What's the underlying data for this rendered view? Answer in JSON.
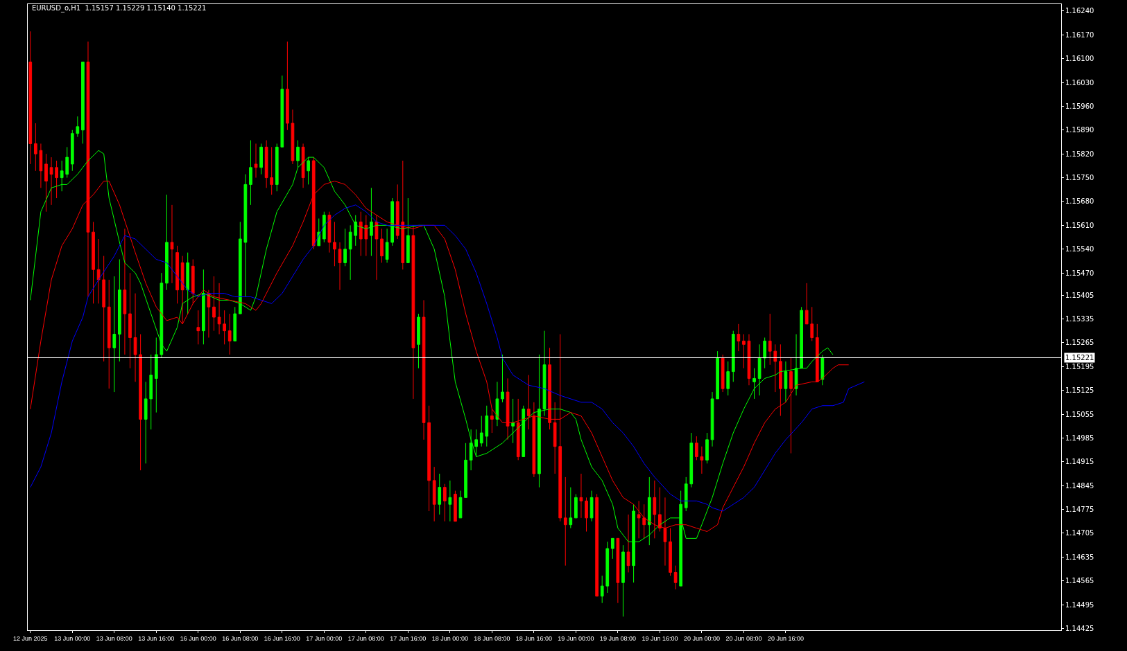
{
  "chart_data": {
    "type": "candlestick",
    "title": "EURUSD_o,H1  1.15157 1.15229 1.15140 1.15221",
    "categories": [
      "12 Jun 2025",
      null,
      null,
      null,
      null,
      null,
      null,
      null,
      "13 Jun 00:00",
      null,
      null,
      null,
      null,
      null,
      null,
      null,
      "13 Jun 08:00",
      null,
      null,
      null,
      null,
      null,
      null,
      null,
      "13 Jun 16:00",
      null,
      null,
      null,
      null,
      null,
      null,
      null,
      "16 Jun 00:00",
      null,
      null,
      null,
      null,
      null,
      null,
      null,
      "16 Jun 08:00",
      null,
      null,
      null,
      null,
      null,
      null,
      null,
      "16 Jun 16:00",
      null,
      null,
      null,
      null,
      null,
      null,
      null,
      "17 Jun 00:00",
      null,
      null,
      null,
      null,
      null,
      null,
      null,
      "17 Jun 08:00",
      null,
      null,
      null,
      null,
      null,
      null,
      null,
      "17 Jun 16:00",
      null,
      null,
      null,
      null,
      null,
      null,
      null,
      "18 Jun 00:00",
      null,
      null,
      null,
      null,
      null,
      null,
      null,
      "18 Jun 08:00",
      null,
      null,
      null,
      null,
      null,
      null,
      null,
      "18 Jun 16:00",
      null,
      null,
      null,
      null,
      null,
      null,
      null,
      "19 Jun 00:00",
      null,
      null,
      null,
      null,
      null,
      null,
      null,
      "19 Jun 08:00",
      null,
      null,
      null,
      null,
      null,
      null,
      null,
      "19 Jun 16:00",
      null,
      null,
      null,
      null,
      null,
      null,
      null,
      "20 Jun 00:00",
      null,
      null,
      null,
      null,
      null,
      null,
      null,
      "20 Jun 08:00",
      null,
      null,
      null,
      null,
      null,
      null,
      null,
      "20 Jun 16:00",
      null,
      null,
      null,
      null,
      null,
      null,
      null,
      null,
      null,
      null,
      null,
      null,
      null,
      null,
      null,
      null,
      null,
      null,
      null,
      null,
      null,
      null,
      null,
      null,
      null,
      null,
      null,
      null,
      null,
      null,
      null,
      null,
      null,
      null,
      null,
      null,
      null,
      null,
      null,
      null,
      null,
      null,
      null,
      null,
      null,
      null,
      null,
      null,
      null,
      null,
      null,
      null
    ],
    "colors": [
      "#ff0000",
      "#ff0000",
      "#ff0000",
      "#ff0000",
      "#ff0000",
      "#ff0000",
      "#00ff00",
      "#00ff00",
      "#00ff00",
      "#00ff00",
      "#00ff00",
      "#ff0000",
      "#ff0000",
      "#ff0000",
      "#ff0000",
      "#ff0000",
      "#00ff00",
      "#00ff00",
      "#ff0000",
      "#ff0000",
      "#ff0000",
      "#ff0000",
      "#00ff00",
      "#00ff00",
      "#00ff00",
      "#00ff00",
      "#00ff00",
      "#ff0000",
      "#ff0000",
      "#ff0000",
      "#00ff00",
      "#ff0000",
      "#ff0000",
      "#00ff00",
      "#ff0000",
      "#ff0000",
      "#ff0000",
      "#ff0000",
      "#ff0000",
      "#00ff00",
      "#00ff00",
      "#00ff00",
      "#00ff00",
      "#ff0000",
      "#00ff00",
      "#ff0000",
      "#ff0000",
      "#00ff00",
      "#00ff00",
      "#ff0000",
      "#ff0000",
      "#00ff00",
      "#ff0000",
      "#00ff00",
      "#ff0000",
      "#00ff00",
      "#00ff00",
      "#ff0000",
      "#ff0000",
      "#ff0000",
      "#00ff00",
      "#00ff00",
      "#00ff00",
      "#ff0000",
      "#ff0000",
      "#00ff00",
      "#ff0000",
      "#ff0000",
      "#00ff00",
      "#00ff00",
      "#ff0000",
      "#ff0000",
      "#00ff00",
      "#ff0000",
      "#00ff00",
      "#ff0000",
      "#ff0000",
      "#ff0000",
      "#00ff00",
      "#ff0000",
      "#00ff00",
      "#ff0000",
      "#00ff00",
      "#00ff00",
      "#00ff00",
      "#00ff00",
      "#00ff00",
      "#00ff00",
      "#ff0000",
      "#00ff00",
      "#00ff00",
      "#ff0000",
      "#00ff00",
      "#ff0000",
      "#00ff00",
      "#ff0000",
      "#ff0000",
      "#00ff00",
      "#00ff00",
      "#ff0000",
      "#ff0000",
      "#ff0000",
      "#ff0000",
      "#00ff00",
      "#00ff00",
      "#ff0000",
      "#ff0000",
      "#00ff00",
      "#ff0000",
      "#00ff00",
      "#00ff00",
      "#00ff00",
      "#ff0000",
      "#00ff00",
      "#ff0000",
      "#00ff00",
      "#ff0000",
      "#ff0000",
      "#00ff00",
      "#ff0000",
      "#ff0000",
      "#ff0000",
      "#ff0000",
      "#ff0000",
      "#00ff00",
      "#00ff00",
      "#00ff00",
      "#ff0000",
      "#ff0000",
      "#00ff00",
      "#00ff00",
      "#00ff00",
      "#ff0000",
      "#00ff00",
      "#00ff00",
      "#ff0000",
      "#ff0000",
      "#ff0000",
      "#00ff00",
      "#00ff00",
      "#00ff00",
      "#ff0000",
      "#ff0000",
      "#ff0000",
      "#00ff00",
      "#ff0000",
      "#00ff00",
      "#00ff00",
      "#ff0000",
      "#ff0000",
      "#ff0000",
      "#00ff00",
      null,
      null,
      null,
      null,
      null,
      null,
      null,
      null,
      null,
      null,
      null,
      null,
      null,
      null,
      null,
      null,
      null,
      null,
      null,
      null,
      null,
      null,
      null,
      null,
      null,
      null,
      null,
      null,
      null,
      null,
      null,
      null,
      null,
      null,
      null,
      null,
      null,
      null,
      null,
      null,
      null,
      null,
      null,
      null,
      null
    ],
    "ohlc": [
      [
        1.1609,
        1.1618,
        1.1579,
        1.1585
      ],
      [
        1.1585,
        1.1591,
        1.1577,
        1.1582
      ],
      [
        1.1583,
        1.1585,
        1.1572,
        1.1577
      ],
      [
        1.1579,
        1.1582,
        1.1565,
        1.1574
      ],
      [
        1.1578,
        1.1581,
        1.1567,
        1.1576
      ],
      [
        1.1578,
        1.158,
        1.1569,
        1.1575
      ],
      [
        1.1575,
        1.158,
        1.1571,
        1.1577
      ],
      [
        1.1576,
        1.1584,
        1.1575,
        1.1581
      ],
      [
        1.1579,
        1.1589,
        1.1577,
        1.1588
      ],
      [
        1.1588,
        1.1593,
        1.1587,
        1.159
      ],
      [
        1.1589,
        1.1609,
        1.1585,
        1.1609
      ],
      [
        1.1609,
        1.1615,
        1.154,
        1.1559
      ],
      [
        1.1559,
        1.1562,
        1.1538,
        1.1548
      ],
      [
        1.1548,
        1.1557,
        1.1538,
        1.1545
      ],
      [
        1.1545,
        1.1552,
        1.1521,
        1.1537
      ],
      [
        1.1537,
        1.1545,
        1.1513,
        1.1525
      ],
      [
        1.1525,
        1.1546,
        1.1512,
        1.1529
      ],
      [
        1.1529,
        1.1551,
        1.1521,
        1.1542
      ],
      [
        1.1542,
        1.156,
        1.1523,
        1.1535
      ],
      [
        1.1535,
        1.1547,
        1.1519,
        1.1528
      ],
      [
        1.1528,
        1.1541,
        1.1515,
        1.1523
      ],
      [
        1.1523,
        1.1529,
        1.1489,
        1.1504
      ],
      [
        1.1504,
        1.1515,
        1.1491,
        1.151
      ],
      [
        1.151,
        1.1523,
        1.1501,
        1.1517
      ],
      [
        1.1516,
        1.1528,
        1.1506,
        1.1523
      ],
      [
        1.1523,
        1.1547,
        1.1522,
        1.1544
      ],
      [
        1.1544,
        1.157,
        1.1542,
        1.1556
      ],
      [
        1.1556,
        1.1567,
        1.1544,
        1.1554
      ],
      [
        1.1553,
        1.1555,
        1.1538,
        1.1542
      ],
      [
        1.155,
        1.1552,
        1.1532,
        1.1542
      ],
      [
        1.1542,
        1.1553,
        1.1535,
        1.155
      ],
      [
        1.1549,
        1.1551,
        1.1538,
        1.1541
      ],
      [
        1.1531,
        1.1536,
        1.1526,
        1.153
      ],
      [
        1.153,
        1.1548,
        1.1526,
        1.1541
      ],
      [
        1.1541,
        1.1542,
        1.1528,
        1.1537
      ],
      [
        1.1537,
        1.1546,
        1.153,
        1.1534
      ],
      [
        1.1534,
        1.1544,
        1.1529,
        1.1532
      ],
      [
        1.1532,
        1.1536,
        1.1526,
        1.153
      ],
      [
        1.153,
        1.1535,
        1.1523,
        1.1527
      ],
      [
        1.1527,
        1.1537,
        1.1527,
        1.1535
      ],
      [
        1.1535,
        1.1562,
        1.1535,
        1.1557
      ],
      [
        1.1556,
        1.1576,
        1.154,
        1.1573
      ],
      [
        1.1573,
        1.1586,
        1.1567,
        1.1578
      ],
      [
        1.1579,
        1.1585,
        1.1575,
        1.1578
      ],
      [
        1.1578,
        1.1585,
        1.1576,
        1.1584
      ],
      [
        1.1584,
        1.1586,
        1.1572,
        1.1575
      ],
      [
        1.1575,
        1.1584,
        1.157,
        1.1573
      ],
      [
        1.1573,
        1.1585,
        1.1571,
        1.1584
      ],
      [
        1.1584,
        1.1605,
        1.1584,
        1.1601
      ],
      [
        1.1601,
        1.1615,
        1.1589,
        1.1591
      ],
      [
        1.1591,
        1.1595,
        1.1579,
        1.158
      ],
      [
        1.158,
        1.1586,
        1.1578,
        1.1584
      ],
      [
        1.1584,
        1.1585,
        1.1572,
        1.1575
      ],
      [
        1.1577,
        1.1581,
        1.1573,
        1.158
      ],
      [
        1.158,
        1.1581,
        1.1554,
        1.1555
      ],
      [
        1.1555,
        1.1563,
        1.1555,
        1.1559
      ],
      [
        1.1557,
        1.1565,
        1.1556,
        1.1564
      ],
      [
        1.1564,
        1.1565,
        1.1553,
        1.1556
      ],
      [
        1.1556,
        1.1562,
        1.1549,
        1.1554
      ],
      [
        1.1554,
        1.1556,
        1.1542,
        1.155
      ],
      [
        1.155,
        1.156,
        1.1549,
        1.1554
      ],
      [
        1.1554,
        1.1561,
        1.1545,
        1.1559
      ],
      [
        1.1558,
        1.1564,
        1.1555,
        1.1562
      ],
      [
        1.1562,
        1.1565,
        1.1552,
        1.1557
      ],
      [
        1.1561,
        1.1564,
        1.1552,
        1.1557
      ],
      [
        1.1558,
        1.1572,
        1.1552,
        1.1562
      ],
      [
        1.1562,
        1.1564,
        1.1545,
        1.1557
      ],
      [
        1.1557,
        1.156,
        1.155,
        1.1552
      ],
      [
        1.1551,
        1.156,
        1.155,
        1.1556
      ],
      [
        1.1556,
        1.1569,
        1.1555,
        1.1568
      ],
      [
        1.1568,
        1.1573,
        1.1557,
        1.1558
      ],
      [
        1.1562,
        1.158,
        1.1548,
        1.155
      ],
      [
        1.155,
        1.1569,
        1.155,
        1.1558
      ],
      [
        1.1558,
        1.1561,
        1.151,
        1.1525
      ],
      [
        1.1526,
        1.1535,
        1.1519,
        1.1534
      ],
      [
        1.1534,
        1.1539,
        1.1498,
        1.1503
      ],
      [
        1.1503,
        1.1508,
        1.1477,
        1.1486
      ],
      [
        1.1486,
        1.149,
        1.1474,
        1.1479
      ],
      [
        1.1479,
        1.1488,
        1.1476,
        1.1484
      ],
      [
        1.1484,
        1.1485,
        1.1474,
        1.148
      ],
      [
        1.1479,
        1.1486,
        1.1474,
        1.1481
      ],
      [
        1.1482,
        1.1483,
        1.1474,
        1.1474
      ],
      [
        1.1475,
        1.1483,
        1.1475,
        1.1481
      ],
      [
        1.1481,
        1.1497,
        1.1481,
        1.1492
      ],
      [
        1.1492,
        1.1501,
        1.1489,
        1.1497
      ],
      [
        1.1496,
        1.1501,
        1.1493,
        1.1498
      ],
      [
        1.1497,
        1.1505,
        1.1496,
        1.15
      ],
      [
        1.1499,
        1.1508,
        1.1496,
        1.1505
      ],
      [
        1.1505,
        1.1507,
        1.15,
        1.1504
      ],
      [
        1.1504,
        1.1515,
        1.1502,
        1.151
      ],
      [
        1.151,
        1.1523,
        1.1509,
        1.1512
      ],
      [
        1.1512,
        1.1516,
        1.1498,
        1.1502
      ],
      [
        1.1502,
        1.151,
        1.1497,
        1.1503
      ],
      [
        1.1503,
        1.151,
        1.1492,
        1.1493
      ],
      [
        1.1493,
        1.1508,
        1.1493,
        1.1507
      ],
      [
        1.1507,
        1.1517,
        1.1501,
        1.1505
      ],
      [
        1.1505,
        1.1509,
        1.1487,
        1.1488
      ],
      [
        1.1488,
        1.1523,
        1.1484,
        1.1507
      ],
      [
        1.1507,
        1.153,
        1.1505,
        1.152
      ],
      [
        1.152,
        1.1525,
        1.1501,
        1.1503
      ],
      [
        1.1503,
        1.1509,
        1.1488,
        1.1496
      ],
      [
        1.1496,
        1.1529,
        1.1474,
        1.1475
      ],
      [
        1.1475,
        1.1487,
        1.1461,
        1.1473
      ],
      [
        1.1473,
        1.1484,
        1.1472,
        1.1475
      ],
      [
        1.1475,
        1.1482,
        1.1475,
        1.1481
      ],
      [
        1.1481,
        1.1488,
        1.1475,
        1.148
      ],
      [
        1.148,
        1.1481,
        1.1471,
        1.1475
      ],
      [
        1.1475,
        1.1483,
        1.1474,
        1.1481
      ],
      [
        1.1481,
        1.1482,
        1.1452,
        1.1452
      ],
      [
        1.1452,
        1.1458,
        1.145,
        1.1455
      ],
      [
        1.1455,
        1.1468,
        1.1453,
        1.1466
      ],
      [
        1.1466,
        1.1469,
        1.1463,
        1.1469
      ],
      [
        1.1469,
        1.1469,
        1.145,
        1.1456
      ],
      [
        1.1456,
        1.1467,
        1.1446,
        1.1465
      ],
      [
        1.1465,
        1.1476,
        1.1459,
        1.1461
      ],
      [
        1.1461,
        1.1479,
        1.1456,
        1.1477
      ],
      [
        1.1476,
        1.148,
        1.1469,
        1.1475
      ],
      [
        1.1475,
        1.1479,
        1.1469,
        1.1473
      ],
      [
        1.1473,
        1.1487,
        1.1467,
        1.1481
      ],
      [
        1.1481,
        1.1486,
        1.1469,
        1.1476
      ],
      [
        1.1476,
        1.1484,
        1.1471,
        1.1472
      ],
      [
        1.1472,
        1.1481,
        1.1461,
        1.1468
      ],
      [
        1.1468,
        1.1472,
        1.1458,
        1.1459
      ],
      [
        1.1459,
        1.1461,
        1.1454,
        1.1456
      ],
      [
        1.1455,
        1.1483,
        1.1455,
        1.1479
      ],
      [
        1.1478,
        1.1487,
        1.1477,
        1.1485
      ],
      [
        1.1485,
        1.15,
        1.1484,
        1.1497
      ],
      [
        1.1497,
        1.1499,
        1.1492,
        1.1493
      ],
      [
        1.1493,
        1.1496,
        1.1488,
        1.1492
      ],
      [
        1.1492,
        1.15,
        1.1491,
        1.1498
      ],
      [
        1.1498,
        1.1512,
        1.1496,
        1.151
      ],
      [
        1.151,
        1.1524,
        1.151,
        1.1522
      ],
      [
        1.1522,
        1.1523,
        1.1512,
        1.1513
      ],
      [
        1.1513,
        1.1521,
        1.1511,
        1.1518
      ],
      [
        1.1518,
        1.153,
        1.1515,
        1.1529
      ],
      [
        1.1529,
        1.1532,
        1.1524,
        1.1527
      ],
      [
        1.1527,
        1.1529,
        1.1519,
        1.1526
      ],
      [
        1.1527,
        1.1529,
        1.1514,
        1.1516
      ],
      [
        1.1515,
        1.1519,
        1.151,
        1.1516
      ],
      [
        1.1516,
        1.1526,
        1.1511,
        1.1522
      ],
      [
        1.1522,
        1.1528,
        1.1519,
        1.1527
      ],
      [
        1.1527,
        1.1535,
        1.152,
        1.1524
      ],
      [
        1.1524,
        1.1526,
        1.1512,
        1.1521
      ],
      [
        1.1521,
        1.1526,
        1.1505,
        1.1513
      ],
      [
        1.1513,
        1.1521,
        1.1509,
        1.1518
      ],
      [
        1.1518,
        1.1522,
        1.1494,
        1.1513
      ],
      [
        1.1513,
        1.1529,
        1.1511,
        1.1519
      ],
      [
        1.1519,
        1.1537,
        1.1519,
        1.1536
      ],
      [
        1.1536,
        1.1544,
        1.1532,
        1.1532
      ],
      [
        1.1532,
        1.1537,
        1.1527,
        1.1528
      ],
      [
        1.1528,
        1.1532,
        1.1515,
        1.1515
      ],
      [
        1.15157,
        1.15229,
        1.1514,
        1.15221
      ],
      null,
      null,
      null,
      null,
      null,
      null,
      null,
      null,
      null,
      null,
      null,
      null,
      null,
      null,
      null,
      null,
      null,
      null,
      null,
      null,
      null,
      null,
      null,
      null,
      null,
      null,
      null,
      null,
      null,
      null,
      null,
      null,
      null,
      null,
      null,
      null,
      null,
      null,
      null,
      null,
      null,
      null,
      null,
      null,
      null
    ],
    "series": [
      {
        "type": "line",
        "color": "#00ff00",
        "values": [
          1.1539,
          null,
          1.1565,
          null,
          1.1572,
          null,
          1.1573,
          1.1573,
          null,
          1.1576,
          null,
          1.158,
          null,
          1.1583,
          1.1582,
          1.1569,
          null,
          1.1556,
          1.155,
          null,
          1.1547,
          1.1544,
          null,
          1.1535,
          null,
          1.1526,
          1.1524,
          null,
          1.1531,
          1.1538,
          null,
          1.154,
          null,
          1.1541,
          null,
          null,
          1.1539,
          null,
          1.1539,
          null,
          1.1538,
          null,
          1.1536,
          1.154,
          null,
          1.1554,
          null,
          1.1565,
          null,
          null,
          1.1573,
          1.1578,
          null,
          1.1581,
          1.1581,
          null,
          1.1578,
          null,
          1.1571,
          null,
          1.1567,
          null,
          1.1561,
          null,
          1.156,
          null,
          1.1561,
          null,
          1.1561,
          null,
          null,
          1.156,
          null,
          null,
          1.1561,
          1.1561,
          null,
          1.1554,
          null,
          1.154,
          1.1527,
          1.1515,
          null,
          1.1504,
          1.1498,
          1.1493,
          null,
          1.1494,
          null,
          null,
          1.1497,
          null,
          1.15,
          null,
          1.1503,
          null,
          1.1506,
          null,
          null,
          1.1507,
          null,
          1.1507,
          null,
          1.1506,
          1.1504,
          1.1498,
          null,
          1.149,
          null,
          1.1486,
          null,
          1.1479,
          1.1472,
          null,
          1.1468,
          null,
          1.1468,
          null,
          1.147,
          null,
          1.1473,
          null,
          1.1475,
          null,
          1.1475,
          1.1469,
          null,
          1.1469,
          1.1473,
          null,
          1.1481,
          null,
          1.1491,
          null,
          1.15,
          null,
          1.1507,
          null,
          1.1513,
          null,
          1.1516,
          null,
          1.1517,
          1.1518,
          null,
          null,
          null,
          1.1519,
          1.1519,
          1.1521,
          null,
          1.1524,
          1.1525,
          1.1523,
          null,
          null,
          null,
          null,
          null,
          null,
          null,
          null,
          null,
          null,
          null,
          null,
          null,
          null,
          null,
          null,
          null,
          null,
          null,
          null,
          null,
          null,
          null,
          null,
          null,
          null,
          null,
          null,
          null,
          null,
          null,
          null,
          null,
          null,
          null,
          null,
          null,
          null,
          null,
          null,
          null,
          null,
          null
        ]
      },
      {
        "type": "line",
        "color": "#ff0000",
        "values": [
          1.1507,
          null,
          1.1527,
          null,
          1.1545,
          null,
          1.1555,
          null,
          1.156,
          null,
          1.1567,
          null,
          1.157,
          null,
          1.1574,
          1.1574,
          null,
          1.1567,
          null,
          null,
          1.1553,
          null,
          1.1544,
          null,
          1.1537,
          null,
          1.1533,
          null,
          1.1534,
          1.1532,
          null,
          1.1538,
          null,
          1.1542,
          null,
          1.154,
          null,
          null,
          1.1539,
          null,
          null,
          1.1538,
          null,
          1.1536,
          1.1538,
          null,
          null,
          1.1547,
          null,
          null,
          1.1555,
          null,
          1.1562,
          null,
          1.157,
          null,
          1.1573,
          null,
          1.1574,
          null,
          1.1573,
          null,
          1.157,
          null,
          1.1566,
          null,
          1.1564,
          null,
          1.1562,
          null,
          1.1561,
          null,
          null,
          1.156,
          null,
          1.1561,
          null,
          1.1561,
          null,
          1.1557,
          null,
          1.1548,
          null,
          1.1535,
          null,
          1.1524,
          null,
          1.1515,
          1.1507,
          null,
          1.1503,
          null,
          1.1503,
          null,
          1.1504,
          null,
          1.1505,
          null,
          null,
          1.1504,
          null,
          1.1504,
          null,
          1.1506,
          null,
          1.1505,
          null,
          1.15,
          null,
          1.1493,
          null,
          1.1486,
          null,
          1.1481,
          null,
          1.1479,
          null,
          1.1475,
          null,
          1.1473,
          null,
          1.1472,
          null,
          1.1473,
          null,
          1.1473,
          null,
          1.1472,
          null,
          1.1471,
          null,
          1.1473,
          1.1478,
          null,
          1.1484,
          null,
          1.149,
          null,
          1.1497,
          null,
          1.1503,
          null,
          1.1507,
          null,
          1.1509,
          null,
          1.1514,
          null,
          null,
          1.1515,
          1.1515,
          1.1516,
          null,
          1.1519,
          1.152,
          null,
          1.152,
          null,
          null,
          null,
          null,
          null,
          null,
          null,
          null,
          null,
          null,
          null,
          null,
          null,
          null,
          null,
          null,
          null,
          null,
          null,
          null,
          null,
          null,
          null,
          null,
          null,
          null,
          null,
          null,
          null,
          null,
          null,
          null,
          null,
          null,
          null,
          null,
          null,
          null,
          null,
          null
        ]
      },
      {
        "type": "line",
        "color": "#0000ff",
        "values": [
          1.1484,
          null,
          1.149,
          null,
          1.15,
          null,
          1.1515,
          null,
          1.1527,
          null,
          1.1534,
          1.154,
          null,
          1.1545,
          null,
          null,
          1.1552,
          null,
          1.1558,
          null,
          1.1557,
          null,
          1.1554,
          null,
          1.1551,
          null,
          1.155,
          null,
          1.1546,
          null,
          1.1542,
          null,
          1.154,
          null,
          1.1541,
          null,
          null,
          1.1541,
          null,
          1.154,
          null,
          null,
          1.154,
          null,
          1.1539,
          null,
          1.1538,
          null,
          1.1541,
          null,
          1.1546,
          null,
          1.1551,
          null,
          1.1555,
          null,
          1.1561,
          null,
          1.1564,
          null,
          1.1566,
          null,
          1.1567,
          null,
          1.1565,
          null,
          1.1562,
          null,
          1.1561,
          null,
          null,
          null,
          null,
          1.1561,
          null,
          null,
          null,
          1.1561,
          null,
          1.1561,
          null,
          1.1558,
          null,
          1.1554,
          null,
          1.1547,
          null,
          1.1538,
          null,
          1.1528,
          1.1522,
          null,
          1.1517,
          null,
          null,
          1.1514,
          null,
          null,
          1.1513,
          null,
          null,
          1.1511,
          null,
          null,
          null,
          1.1509,
          null,
          1.1509,
          null,
          1.1507,
          null,
          1.1503,
          null,
          1.15,
          null,
          1.1496,
          null,
          1.1491,
          null,
          1.1487,
          null,
          null,
          1.1482,
          null,
          1.148,
          null,
          null,
          1.148,
          null,
          1.1479,
          1.1478,
          null,
          1.1477,
          null,
          1.1479,
          null,
          1.1481,
          null,
          1.1484,
          null,
          1.1489,
          null,
          1.1494,
          null,
          1.1498,
          null,
          null,
          1.1503,
          null,
          1.1507,
          null,
          1.1508,
          null,
          1.1508,
          null,
          1.1509,
          1.1513,
          null,
          null,
          1.1515,
          null,
          null,
          null,
          null,
          null,
          null,
          null,
          null,
          null,
          null,
          null,
          null,
          null,
          null,
          null,
          null,
          null,
          null,
          null,
          null,
          null,
          null,
          null,
          null,
          null,
          null,
          null,
          null,
          null,
          null,
          null,
          null,
          null,
          null,
          null,
          null,
          null
        ]
      }
    ],
    "ref_lines": [
      {
        "axis": "y",
        "value": 1.15221,
        "label": "1.15221",
        "color": "#ffffff"
      }
    ],
    "ylim": [
      1.1442,
      1.1626
    ],
    "yticks": [
      {
        "value": 1.1624,
        "label": "1.16240"
      },
      {
        "value": 1.1617,
        "label": "1.16170"
      },
      {
        "value": 1.161,
        "label": "1.16100"
      },
      {
        "value": 1.1603,
        "label": "1.16030"
      },
      {
        "value": 1.1596,
        "label": "1.15960"
      },
      {
        "value": 1.1589,
        "label": "1.15890"
      },
      {
        "value": 1.1582,
        "label": "1.15820"
      },
      {
        "value": 1.1575,
        "label": "1.15750"
      },
      {
        "value": 1.1568,
        "label": "1.15680"
      },
      {
        "value": 1.1561,
        "label": "1.15610"
      },
      {
        "value": 1.1554,
        "label": "1.15540"
      },
      {
        "value": 1.1547,
        "label": "1.15470"
      },
      {
        "value": 1.15405,
        "label": "1.15405"
      },
      {
        "value": 1.15335,
        "label": "1.15335"
      },
      {
        "value": 1.15265,
        "label": "1.15265"
      },
      {
        "value": 1.15195,
        "label": "1.15195"
      },
      {
        "value": 1.15125,
        "label": "1.15125"
      },
      {
        "value": 1.15055,
        "label": "1.15055"
      },
      {
        "value": 1.14985,
        "label": "1.14985"
      },
      {
        "value": 1.14915,
        "label": "1.14915"
      },
      {
        "value": 1.14845,
        "label": "1.14845"
      },
      {
        "value": 1.14775,
        "label": "1.14775"
      },
      {
        "value": 1.14705,
        "label": "1.14705"
      },
      {
        "value": 1.14635,
        "label": "1.14635"
      },
      {
        "value": 1.14565,
        "label": "1.14565"
      },
      {
        "value": 1.14495,
        "label": "1.14495"
      },
      {
        "value": 1.14425,
        "label": "1.14425"
      }
    ]
  }
}
